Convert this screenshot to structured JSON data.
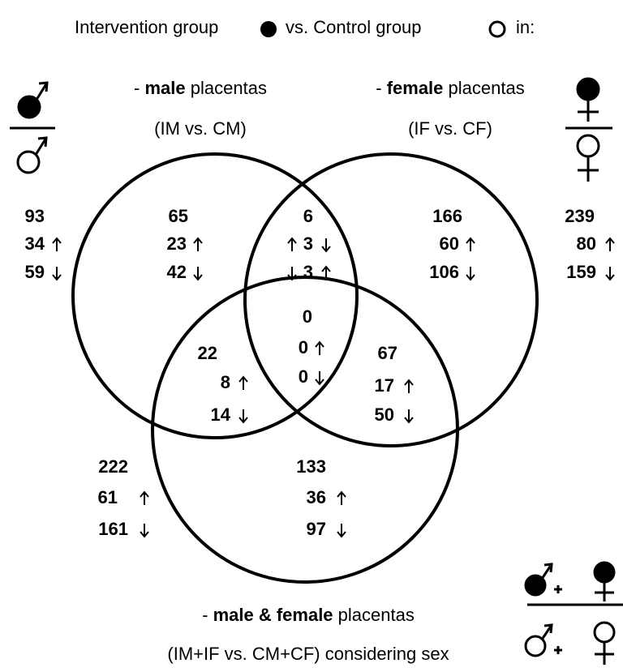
{
  "header": {
    "intervention": "Intervention group",
    "control": "vs. Control group",
    "suffix": "in:"
  },
  "sets": [
    {
      "dash": "-",
      "bold": "male",
      "rest": "placentas",
      "comparison": "(IM vs. CM)"
    },
    {
      "dash": "-",
      "bold": "female",
      "rest": "placentas",
      "comparison": "(IF vs. CF)"
    },
    {
      "dash": "-",
      "bold": "male & female",
      "rest": "placentas",
      "comparison": "(IM+IF vs. CM+CF) considering sex"
    }
  ],
  "regions": [
    {
      "values": [
        93,
        34,
        59
      ]
    },
    {
      "values": [
        65,
        23,
        42
      ]
    },
    {
      "values": [
        6,
        3,
        3
      ]
    },
    {
      "values": [
        166,
        60,
        106
      ]
    },
    {
      "values": [
        239,
        80,
        159
      ]
    },
    {
      "values": [
        0,
        0,
        0
      ]
    },
    {
      "values": [
        22,
        8,
        14
      ]
    },
    {
      "values": [
        67,
        17,
        50
      ]
    },
    {
      "values": [
        133,
        36,
        97
      ]
    },
    {
      "values": [
        222,
        61,
        161
      ]
    }
  ]
}
